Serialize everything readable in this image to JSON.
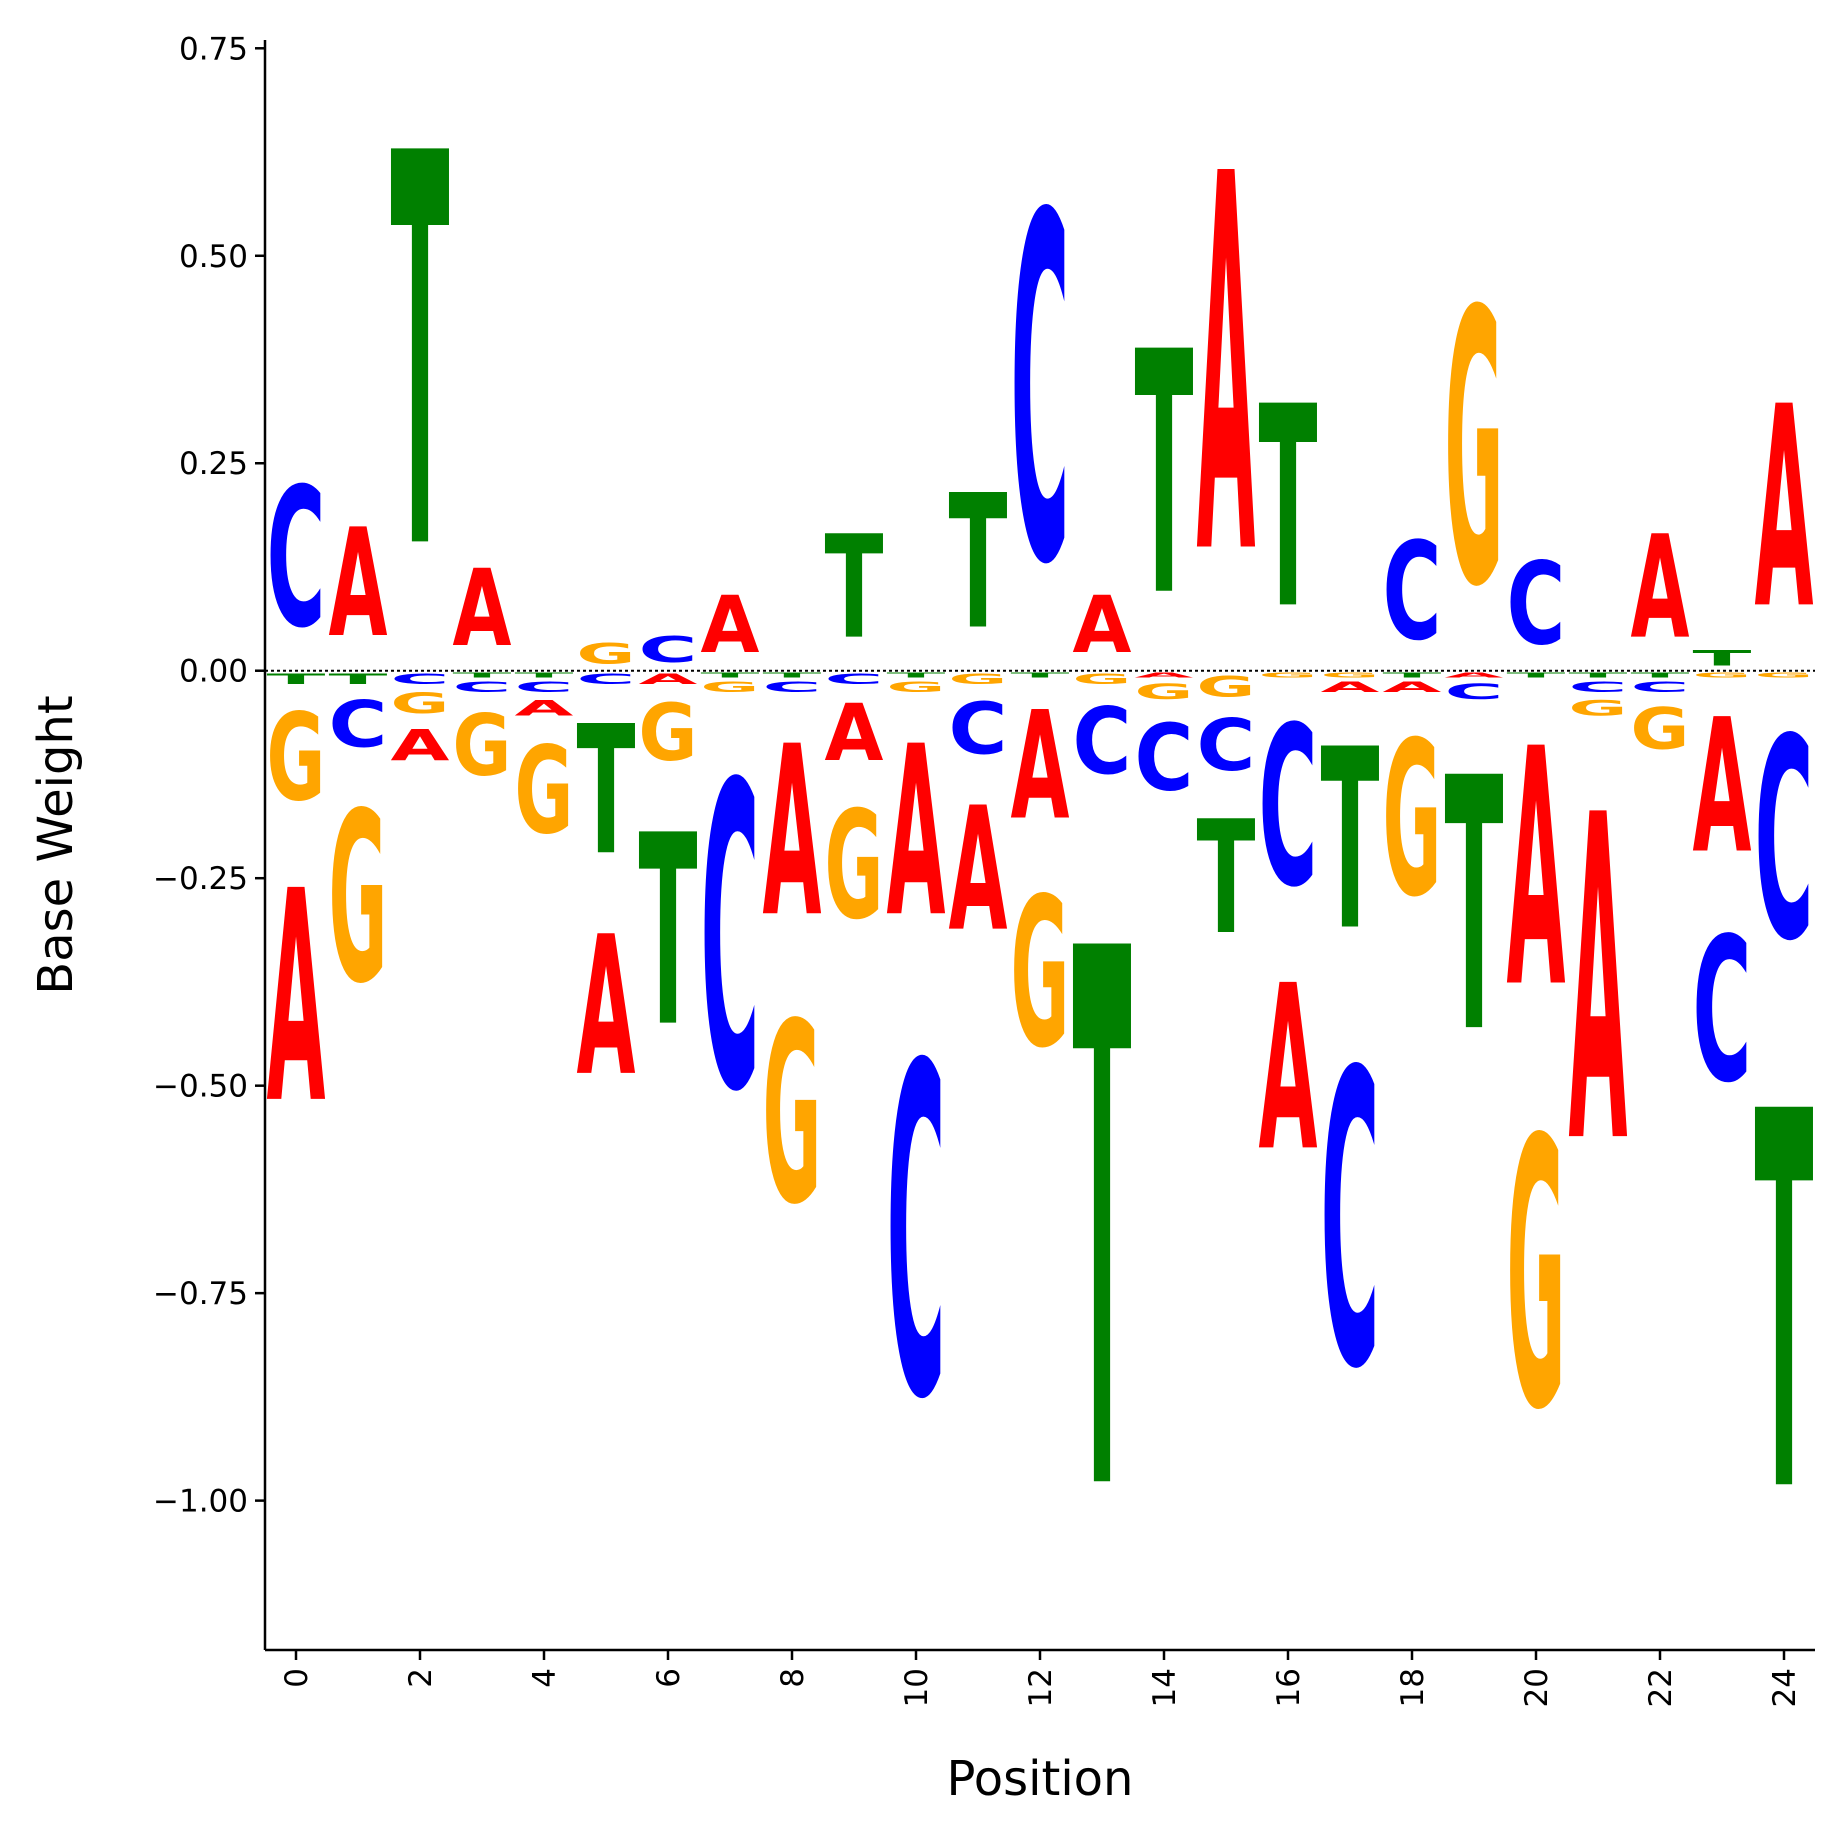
{
  "chart_data": {
    "type": "sequence-logo",
    "xlabel": "Position",
    "ylabel": "Base Weight",
    "xlim": [
      -0.5,
      24.5
    ],
    "ylim": [
      -1.18,
      0.76
    ],
    "x_ticks": [
      0,
      2,
      4,
      6,
      8,
      10,
      12,
      14,
      16,
      18,
      20,
      22,
      24
    ],
    "x_tick_labels": [
      "0",
      "2",
      "4",
      "6",
      "8",
      "10",
      "12",
      "14",
      "16",
      "18",
      "20",
      "22",
      "24"
    ],
    "y_ticks": [
      -1.0,
      -0.75,
      -0.5,
      -0.25,
      0.0,
      0.25,
      0.5,
      0.75
    ],
    "y_tick_labels": [
      "−1.00",
      "−0.75",
      "−0.50",
      "−0.25",
      "0.00",
      "0.25",
      "0.50",
      "0.75"
    ],
    "colors": {
      "A": "#ff0000",
      "C": "#0000ff",
      "G": "#ffa500",
      "T": "#008000"
    },
    "positions": [
      {
        "pos": 0,
        "A": -0.41,
        "C": 0.27,
        "G": -0.17,
        "T": -0.02
      },
      {
        "pos": 1,
        "A": 0.21,
        "C": -0.09,
        "G": -0.33,
        "T": -0.02
      },
      {
        "pos": 2,
        "A": -0.06,
        "C": -0.02,
        "G": -0.04,
        "T": 0.76
      },
      {
        "pos": 3,
        "A": 0.15,
        "C": -0.02,
        "G": -0.12,
        "T": -0.01
      },
      {
        "pos": 4,
        "A": -0.03,
        "C": -0.02,
        "G": -0.17,
        "T": -0.01
      },
      {
        "pos": 5,
        "A": -0.27,
        "C": -0.02,
        "G": 0.04,
        "T": -0.25
      },
      {
        "pos": 6,
        "A": -0.02,
        "C": 0.05,
        "G": -0.11,
        "T": -0.37
      },
      {
        "pos": 7,
        "A": 0.11,
        "C": -0.59,
        "G": -0.02,
        "T": -0.01
      },
      {
        "pos": 8,
        "A": -0.33,
        "C": -0.02,
        "G": -0.35,
        "T": -0.01
      },
      {
        "pos": 9,
        "A": -0.11,
        "C": -0.02,
        "G": -0.21,
        "T": 0.2
      },
      {
        "pos": 10,
        "A": -0.33,
        "C": -0.64,
        "G": -0.02,
        "T": -0.01
      },
      {
        "pos": 11,
        "A": -0.24,
        "C": -0.1,
        "G": -0.02,
        "T": 0.26
      },
      {
        "pos": 12,
        "A": -0.21,
        "C": 0.67,
        "G": -0.29,
        "T": -0.01
      },
      {
        "pos": 13,
        "A": 0.11,
        "C": -0.13,
        "G": -0.02,
        "T": -1.04
      },
      {
        "pos": 14,
        "A": -0.01,
        "C": -0.13,
        "G": -0.03,
        "T": 0.47
      },
      {
        "pos": 15,
        "A": 0.73,
        "C": -0.1,
        "G": -0.04,
        "T": -0.22
      },
      {
        "pos": 16,
        "A": -0.32,
        "C": -0.31,
        "G": -0.01,
        "T": 0.39
      },
      {
        "pos": 17,
        "A": -0.02,
        "C": -0.57,
        "G": -0.01,
        "T": -0.35
      },
      {
        "pos": 18,
        "A": -0.02,
        "C": 0.19,
        "G": -0.3,
        "T": -0.01
      },
      {
        "pos": 19,
        "A": -0.01,
        "C": -0.03,
        "G": 0.53,
        "T": -0.49
      },
      {
        "pos": 20,
        "A": -0.46,
        "C": 0.16,
        "G": -0.52,
        "T": -0.01
      },
      {
        "pos": 21,
        "A": -0.63,
        "C": -0.02,
        "G": -0.03,
        "T": -0.01
      },
      {
        "pos": 22,
        "A": 0.2,
        "C": -0.02,
        "G": -0.08,
        "T": -0.01
      },
      {
        "pos": 23,
        "A": -0.26,
        "C": -0.28,
        "G": -0.01,
        "T": 0.03
      },
      {
        "pos": 24,
        "A": 0.39,
        "C": -0.39,
        "G": -0.01,
        "T": -0.73
      }
    ]
  }
}
